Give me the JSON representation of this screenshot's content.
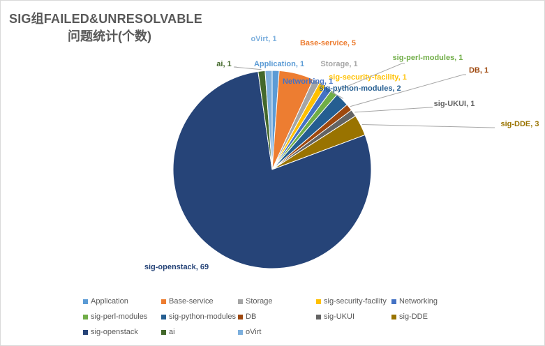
{
  "chart_data": {
    "type": "pie",
    "title": "SIG组FAILED&UNRESOLVABLE",
    "subtitle": "问题统计(个数)",
    "legend": "bottom",
    "slices": [
      {
        "label": "Application",
        "value": 1,
        "color": "#5b9bd5",
        "data_label": "Application,  1",
        "label_color": "#5b9bd5"
      },
      {
        "label": "Base-service",
        "value": 5,
        "color": "#ed7d31",
        "data_label": "Base-service,  5",
        "label_color": "#ed7d31"
      },
      {
        "label": "Storage",
        "value": 1,
        "color": "#a5a5a5",
        "data_label": "Storage,  1",
        "label_color": "#a5a5a5"
      },
      {
        "label": "sig-security-facility",
        "value": 1,
        "color": "#ffc000",
        "data_label": "sig-security-facility,  1",
        "label_color": "#ffc000"
      },
      {
        "label": "Networking",
        "value": 1,
        "color": "#4472c4",
        "data_label": "Networking,  1",
        "label_color": "#4472c4"
      },
      {
        "label": "sig-perl-modules",
        "value": 1,
        "color": "#70ad47",
        "data_label": "sig-perl-modules,  1",
        "label_color": "#70ad47"
      },
      {
        "label": "sig-python-modules",
        "value": 2,
        "color": "#255e91",
        "data_label": "sig-python-modules,  2",
        "label_color": "#255e91"
      },
      {
        "label": "DB",
        "value": 1,
        "color": "#9e480e",
        "data_label": "DB,  1",
        "label_color": "#9e480e"
      },
      {
        "label": "sig-UKUI",
        "value": 1,
        "color": "#636363",
        "data_label": "sig-UKUI,  1",
        "label_color": "#636363"
      },
      {
        "label": "sig-DDE",
        "value": 3,
        "color": "#997300",
        "data_label": "sig-DDE,  3",
        "label_color": "#997300"
      },
      {
        "label": "sig-openstack",
        "value": 69,
        "color": "#264478",
        "data_label": "sig-openstack,  69",
        "label_color": "#264478"
      },
      {
        "label": "ai",
        "value": 1,
        "color": "#43682b",
        "data_label": "ai,  1",
        "label_color": "#43682b"
      },
      {
        "label": "oVirt",
        "value": 1,
        "color": "#7cafdd",
        "data_label": "oVirt,  1",
        "label_color": "#7cafdd"
      }
    ]
  }
}
